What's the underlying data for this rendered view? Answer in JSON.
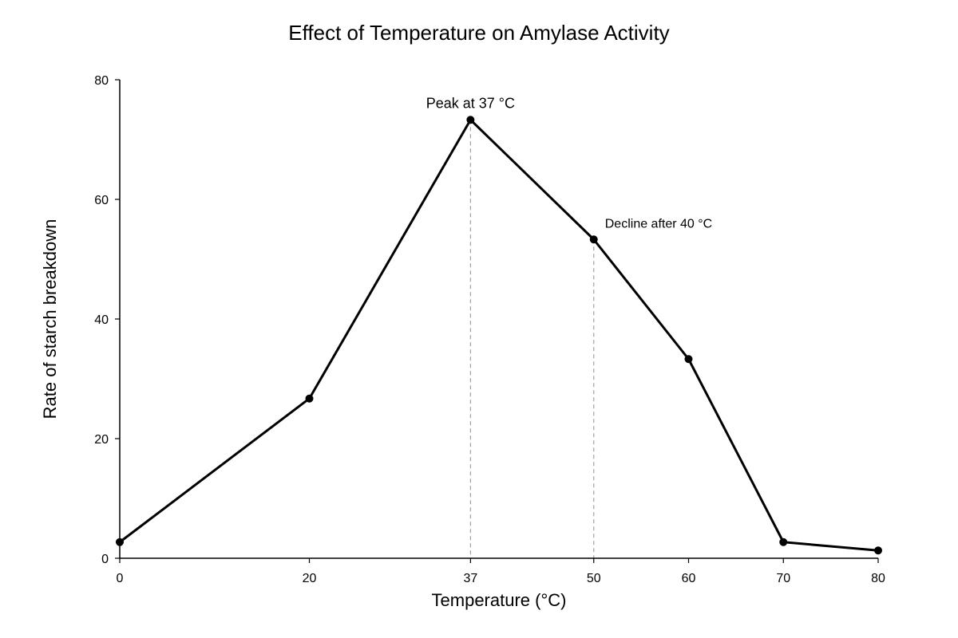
{
  "chart_data": {
    "type": "line",
    "title": "Effect of Temperature on Amylase Activity",
    "xlabel": "Temperature (°C)",
    "ylabel": "Rate of starch breakdown",
    "x": [
      0,
      20,
      37,
      50,
      60,
      70,
      80
    ],
    "y": [
      2.7,
      26.7,
      73.3,
      53.3,
      33.3,
      2.7,
      1.3
    ],
    "xlim": [
      0,
      80
    ],
    "ylim": [
      0,
      80
    ],
    "x_ticks": [
      0,
      20,
      37,
      50,
      60,
      70,
      80
    ],
    "y_ticks": [
      0,
      20,
      40,
      60,
      80
    ],
    "grid": false,
    "legend": "none",
    "line_color": "#000000",
    "reference_line_color": "#a0a0a0",
    "reference_lines_x": [
      37,
      50
    ],
    "annotations": [
      {
        "text": "Peak at 37 °C",
        "x": 37,
        "y": 73.3
      },
      {
        "text": "Decline after 40 °C",
        "x": 50,
        "y": 53.3
      }
    ]
  }
}
